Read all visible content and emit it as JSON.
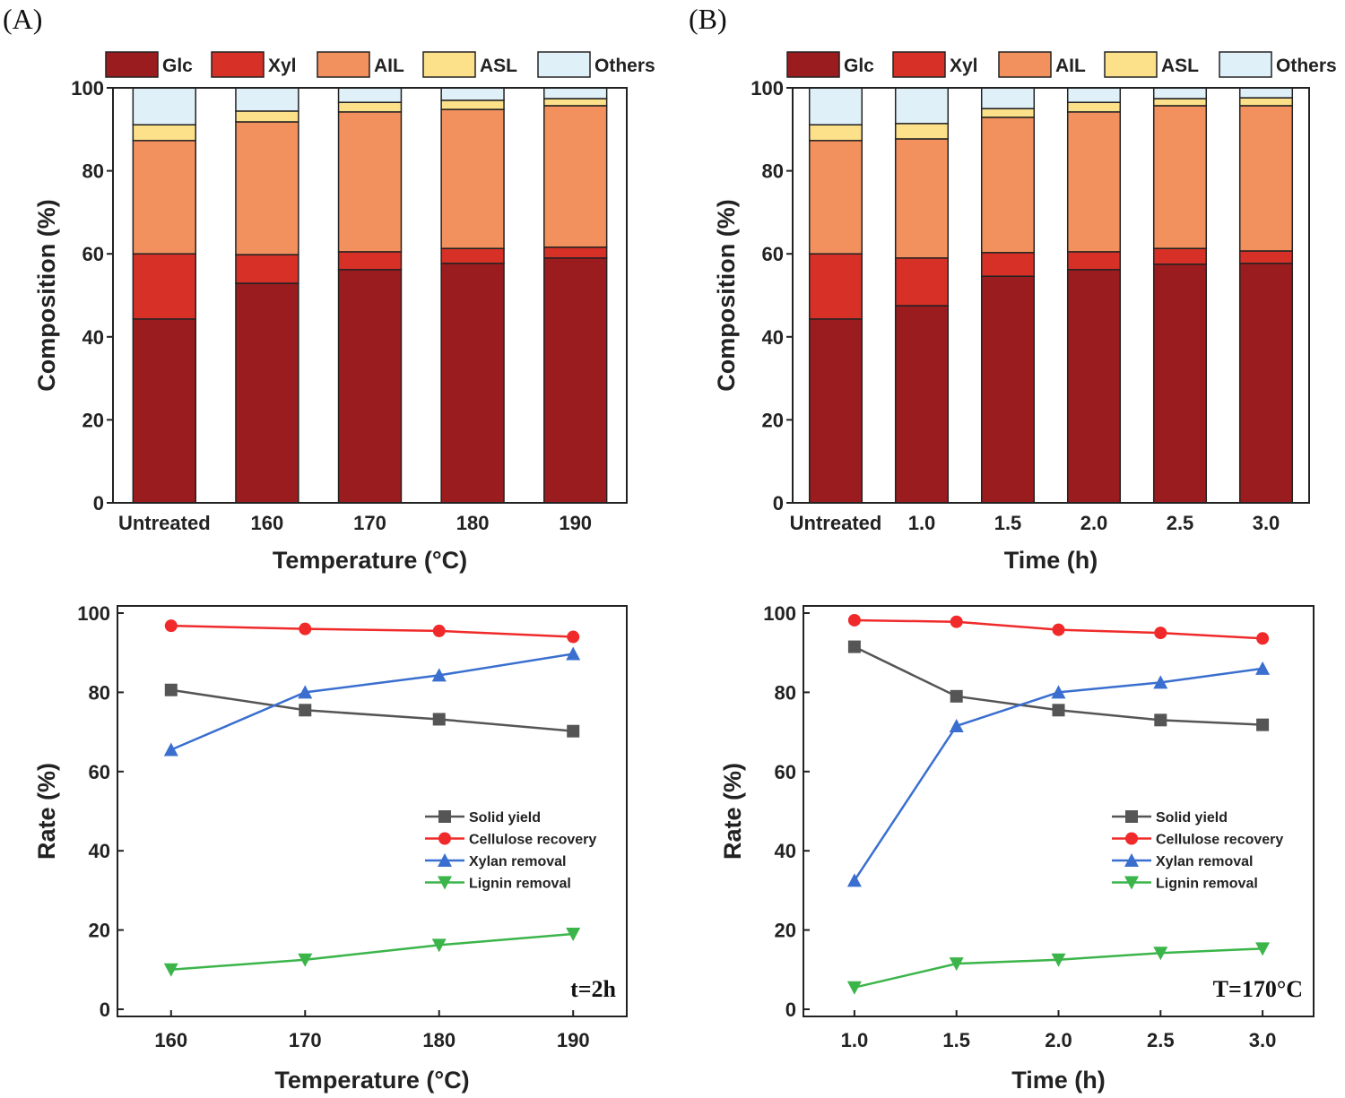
{
  "colors": {
    "Glc": "#9b1c1f",
    "Xyl": "#d63027",
    "AIL": "#f3915e",
    "ASL": "#fde08a",
    "Others": "#dff0f8",
    "Solid yield": "#555555",
    "Cellulose recovery": "#f02a2a",
    "Xylan removal": "#3a6fcf",
    "Lignin removal": "#3bb54a"
  },
  "chart_data": [
    {
      "panel": "(A)",
      "type": "bar",
      "stacked": true,
      "title": "",
      "xlabel": "Temperature (°C)",
      "ylabel": "Composition (%)",
      "ylim": [
        0,
        100
      ],
      "yticks": [
        0,
        20,
        40,
        60,
        80,
        100
      ],
      "categories": [
        "Untreated",
        "160",
        "170",
        "180",
        "190"
      ],
      "series": [
        {
          "name": "Glc",
          "values": [
            44.3,
            52.9,
            56.2,
            57.7,
            59.0
          ]
        },
        {
          "name": "Xyl",
          "values": [
            15.7,
            6.9,
            4.3,
            3.6,
            2.6
          ]
        },
        {
          "name": "AIL",
          "values": [
            27.3,
            32.0,
            33.7,
            33.5,
            34.1
          ]
        },
        {
          "name": "ASL",
          "values": [
            3.8,
            2.6,
            2.3,
            2.2,
            1.7
          ]
        },
        {
          "name": "Others",
          "values": [
            8.9,
            5.6,
            3.5,
            3.0,
            2.6
          ]
        }
      ],
      "legend": "top"
    },
    {
      "panel": "(B)",
      "type": "bar",
      "stacked": true,
      "title": "",
      "xlabel": "Time (h)",
      "ylabel": "Composition (%)",
      "ylim": [
        0,
        100
      ],
      "yticks": [
        0,
        20,
        40,
        60,
        80,
        100
      ],
      "categories": [
        "Untreated",
        "1.0",
        "1.5",
        "2.0",
        "2.5",
        "3.0"
      ],
      "series": [
        {
          "name": "Glc",
          "values": [
            44.3,
            47.5,
            54.6,
            56.2,
            57.5,
            57.7
          ]
        },
        {
          "name": "Xyl",
          "values": [
            15.7,
            11.5,
            5.7,
            4.3,
            3.8,
            3.0
          ]
        },
        {
          "name": "AIL",
          "values": [
            27.3,
            28.7,
            32.6,
            33.7,
            34.4,
            35.0
          ]
        },
        {
          "name": "ASL",
          "values": [
            3.8,
            3.7,
            2.1,
            2.3,
            1.7,
            1.9
          ]
        },
        {
          "name": "Others",
          "values": [
            8.9,
            8.6,
            5.0,
            3.5,
            2.6,
            2.4
          ]
        }
      ],
      "legend": "top"
    },
    {
      "type": "line",
      "xlabel": "Temperature (°C)",
      "ylabel": "Rate (%)",
      "xlim": [
        156,
        194
      ],
      "ylim": [
        0,
        100
      ],
      "xticks": [
        160,
        170,
        180,
        190
      ],
      "yticks": [
        0,
        20,
        40,
        60,
        80,
        100
      ],
      "annotation": "t=2h",
      "x": [
        160,
        170,
        180,
        190
      ],
      "series": [
        {
          "name": "Solid yield",
          "marker": "square",
          "values": [
            80.6,
            75.5,
            73.2,
            70.2
          ]
        },
        {
          "name": "Cellulose recovery",
          "marker": "circle",
          "values": [
            96.8,
            96.0,
            95.5,
            94.0
          ]
        },
        {
          "name": "Xylan removal",
          "marker": "triangle-up",
          "values": [
            65.5,
            80.0,
            84.3,
            89.7
          ]
        },
        {
          "name": "Lignin removal",
          "marker": "triangle-down",
          "values": [
            10.0,
            12.5,
            16.2,
            19.0
          ]
        }
      ],
      "legend": "center-right"
    },
    {
      "type": "line",
      "xlabel": "Time (h)",
      "ylabel": "Rate (%)",
      "xlim": [
        0.75,
        3.25
      ],
      "ylim": [
        0,
        100
      ],
      "xticks": [
        "1.0",
        "1.5",
        "2.0",
        "2.5",
        "3.0"
      ],
      "yticks": [
        0,
        20,
        40,
        60,
        80,
        100
      ],
      "annotation": "T=170°C",
      "x": [
        1.0,
        1.5,
        2.0,
        2.5,
        3.0
      ],
      "series": [
        {
          "name": "Solid yield",
          "marker": "square",
          "values": [
            91.5,
            79.0,
            75.5,
            73.0,
            71.8
          ]
        },
        {
          "name": "Cellulose recovery",
          "marker": "circle",
          "values": [
            98.2,
            97.8,
            95.8,
            95.0,
            93.6
          ]
        },
        {
          "name": "Xylan removal",
          "marker": "triangle-up",
          "values": [
            32.5,
            71.5,
            80.0,
            82.5,
            86.0
          ]
        },
        {
          "name": "Lignin removal",
          "marker": "triangle-down",
          "values": [
            5.5,
            11.5,
            12.5,
            14.2,
            15.3
          ]
        }
      ],
      "legend": "center-right"
    }
  ]
}
